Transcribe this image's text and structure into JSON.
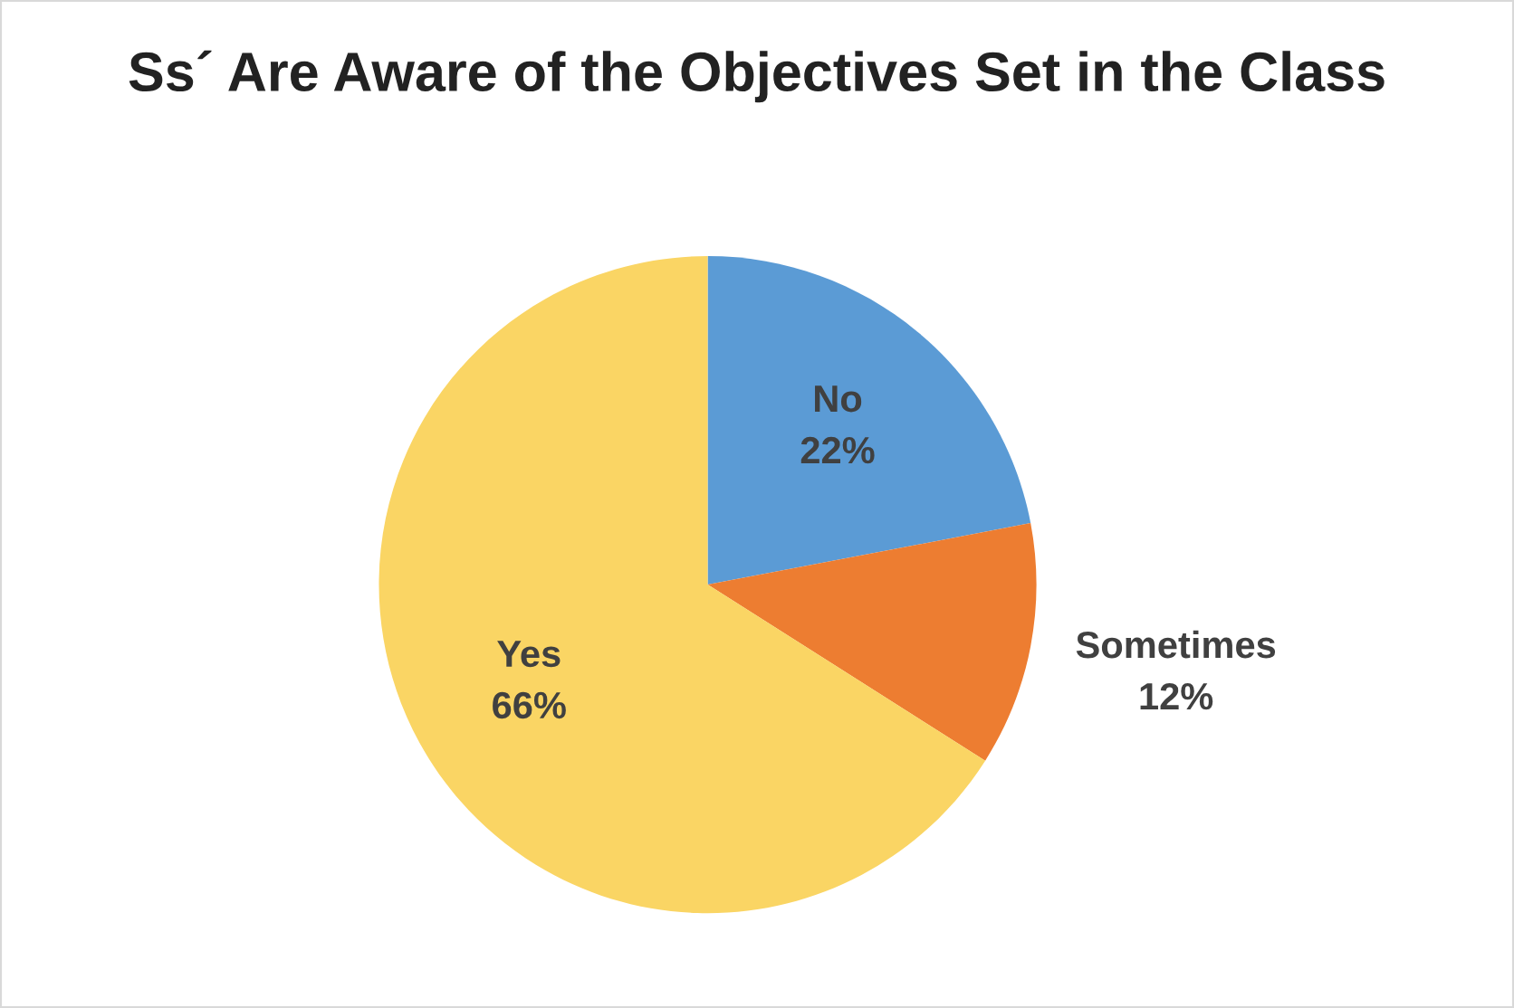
{
  "chart_data": {
    "type": "pie",
    "title": "Ss´ Are Aware of the Objectives Set in the Class",
    "categories": [
      "No",
      "Sometimes",
      "Yes"
    ],
    "values": [
      22,
      12,
      66
    ],
    "value_labels": [
      "22%",
      "12%",
      "66%"
    ],
    "colors": [
      "#5b9bd5",
      "#ed7d31",
      "#fad564"
    ],
    "legend": false
  }
}
